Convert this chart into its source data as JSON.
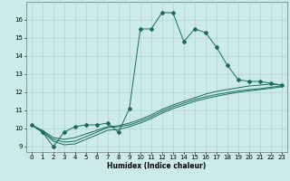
{
  "xlabel": "Humidex (Indice chaleur)",
  "bg_color": "#cceae7",
  "grid_color": "#afd8d4",
  "line_color": "#1a6b5e",
  "xlim": [
    -0.5,
    23.5
  ],
  "ylim": [
    8.7,
    17.0
  ],
  "yticks": [
    9,
    10,
    11,
    12,
    13,
    14,
    15,
    16
  ],
  "xticks": [
    0,
    1,
    2,
    3,
    4,
    5,
    6,
    7,
    8,
    9,
    10,
    11,
    12,
    13,
    14,
    15,
    16,
    17,
    18,
    19,
    20,
    21,
    22,
    23
  ],
  "series_main": {
    "x": [
      0,
      1,
      2,
      3,
      4,
      5,
      6,
      7,
      8,
      9,
      10,
      11,
      12,
      13,
      14,
      15,
      16,
      17,
      18,
      19,
      20,
      21,
      22,
      23
    ],
    "y": [
      10.2,
      9.8,
      9.0,
      9.8,
      10.1,
      10.2,
      10.2,
      10.3,
      9.8,
      11.1,
      15.5,
      15.5,
      16.4,
      16.4,
      14.8,
      15.5,
      15.3,
      14.5,
      13.5,
      12.7,
      12.6,
      12.6,
      12.5,
      12.4
    ]
  },
  "series_smooth1": {
    "x": [
      0,
      1,
      2,
      3,
      4,
      5,
      6,
      7,
      8,
      9,
      10,
      11,
      12,
      13,
      14,
      15,
      16,
      17,
      18,
      19,
      20,
      21,
      22,
      23
    ],
    "y": [
      10.2,
      9.9,
      9.5,
      9.4,
      9.5,
      9.7,
      9.9,
      10.1,
      10.15,
      10.3,
      10.5,
      10.75,
      11.05,
      11.3,
      11.5,
      11.7,
      11.9,
      12.05,
      12.15,
      12.25,
      12.35,
      12.4,
      12.45,
      12.4
    ]
  },
  "series_smooth2": {
    "x": [
      0,
      1,
      2,
      3,
      4,
      5,
      6,
      7,
      8,
      9,
      10,
      11,
      12,
      13,
      14,
      15,
      16,
      17,
      18,
      19,
      20,
      21,
      22,
      23
    ],
    "y": [
      10.2,
      9.85,
      9.4,
      9.25,
      9.3,
      9.55,
      9.8,
      10.05,
      10.1,
      10.2,
      10.4,
      10.65,
      10.95,
      11.2,
      11.4,
      11.6,
      11.75,
      11.88,
      11.98,
      12.08,
      12.15,
      12.2,
      12.28,
      12.35
    ]
  },
  "series_smooth3": {
    "x": [
      0,
      1,
      2,
      3,
      4,
      5,
      6,
      7,
      8,
      9,
      10,
      11,
      12,
      13,
      14,
      15,
      16,
      17,
      18,
      19,
      20,
      21,
      22,
      23
    ],
    "y": [
      10.2,
      9.8,
      9.3,
      9.1,
      9.15,
      9.4,
      9.65,
      9.9,
      9.95,
      10.1,
      10.3,
      10.55,
      10.85,
      11.1,
      11.3,
      11.5,
      11.65,
      11.78,
      11.9,
      12.0,
      12.08,
      12.15,
      12.22,
      12.3
    ]
  }
}
